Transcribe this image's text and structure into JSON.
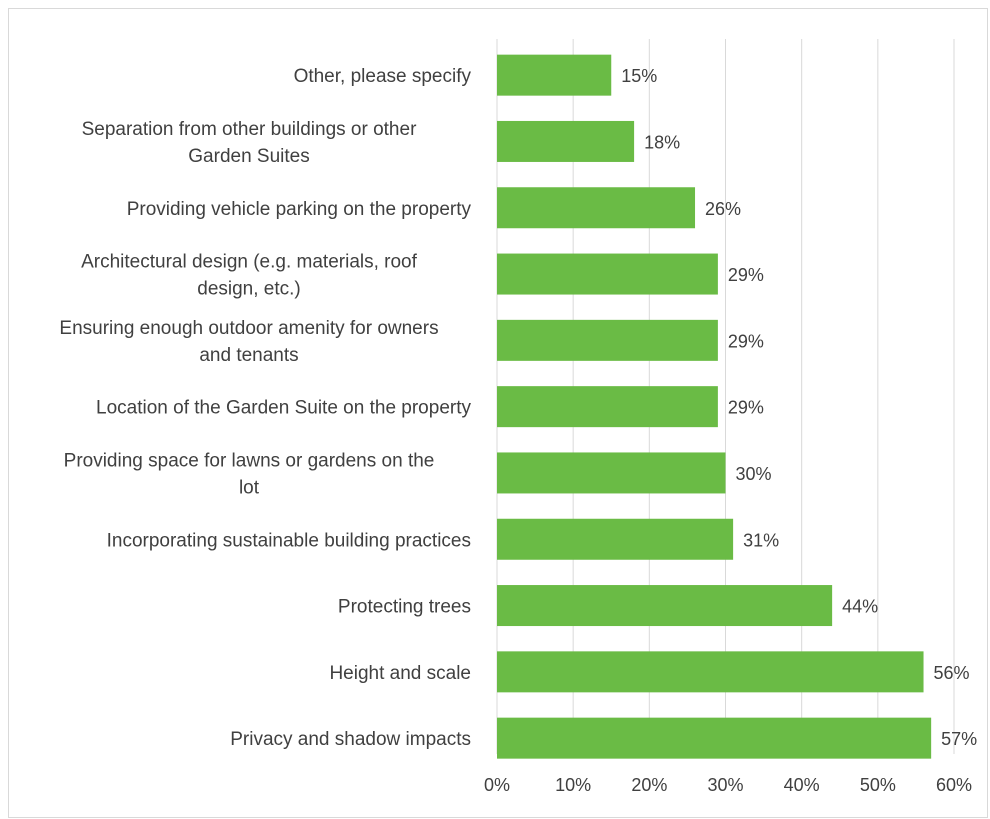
{
  "chart_data": {
    "type": "bar",
    "orientation": "horizontal",
    "categories": [
      "Other, please specify",
      "Separation from other buildings or other Garden Suites",
      "Providing vehicle parking on the property",
      "Architectural design (e.g. materials, roof design, etc.)",
      "Ensuring enough outdoor amenity for owners and tenants",
      "Location of the Garden Suite on the property",
      "Providing space for lawns or gardens on the lot",
      "Incorporating sustainable building practices",
      "Protecting trees",
      "Height and scale",
      "Privacy and shadow impacts"
    ],
    "category_lines": [
      [
        "Other, please specify"
      ],
      [
        "Separation from other buildings or other",
        "Garden Suites"
      ],
      [
        "Providing vehicle parking on the property"
      ],
      [
        "Architectural design (e.g. materials, roof",
        "design, etc.)"
      ],
      [
        "Ensuring enough outdoor amenity for owners",
        "and tenants"
      ],
      [
        "Location of the Garden Suite on the property"
      ],
      [
        "Providing space for lawns or gardens on the",
        "lot"
      ],
      [
        "Incorporating sustainable building practices"
      ],
      [
        "Protecting trees"
      ],
      [
        "Height and scale"
      ],
      [
        "Privacy and shadow impacts"
      ]
    ],
    "values": [
      15,
      18,
      26,
      29,
      29,
      29,
      30,
      31,
      44,
      56,
      57
    ],
    "data_labels": [
      "15%",
      "18%",
      "26%",
      "29%",
      "29%",
      "29%",
      "30%",
      "31%",
      "44%",
      "56%",
      "57%"
    ],
    "xlim": [
      0,
      60
    ],
    "x_ticks": [
      0,
      10,
      20,
      30,
      40,
      50,
      60
    ],
    "x_tick_labels": [
      "0%",
      "10%",
      "20%",
      "30%",
      "40%",
      "50%",
      "60%"
    ],
    "grid": true,
    "legend": "none",
    "title": "",
    "xlabel": "",
    "ylabel": "",
    "colors": {
      "bar": "#6abb45",
      "grid": "#d9d9d9",
      "text": "#404040"
    }
  }
}
